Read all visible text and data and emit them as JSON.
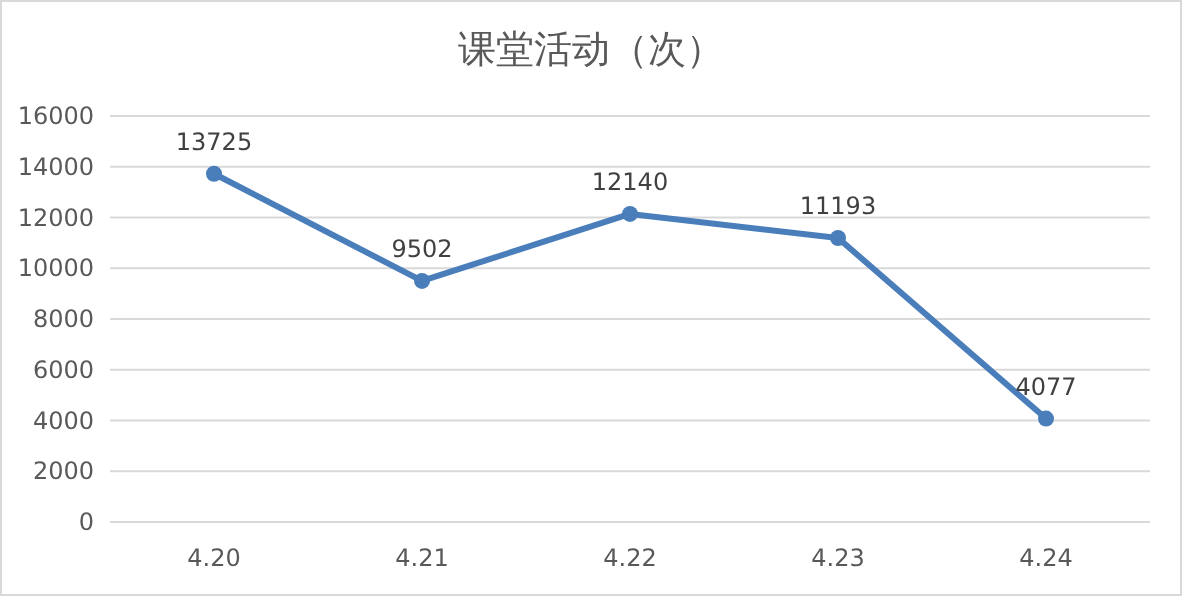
{
  "chart_data": {
    "type": "line",
    "title": "课堂活动（次）",
    "categories": [
      "4.20",
      "4.21",
      "4.22",
      "4.23",
      "4.24"
    ],
    "series": [
      {
        "color": "#4a7ebb",
        "values": [
          13725,
          9502,
          12140,
          11193,
          4077
        ]
      }
    ],
    "ylim": [
      0,
      16000
    ],
    "yticks": [
      0,
      2000,
      4000,
      6000,
      8000,
      10000,
      12000,
      14000,
      16000
    ],
    "grid": "y",
    "marker": "circle",
    "data_labels": true
  }
}
